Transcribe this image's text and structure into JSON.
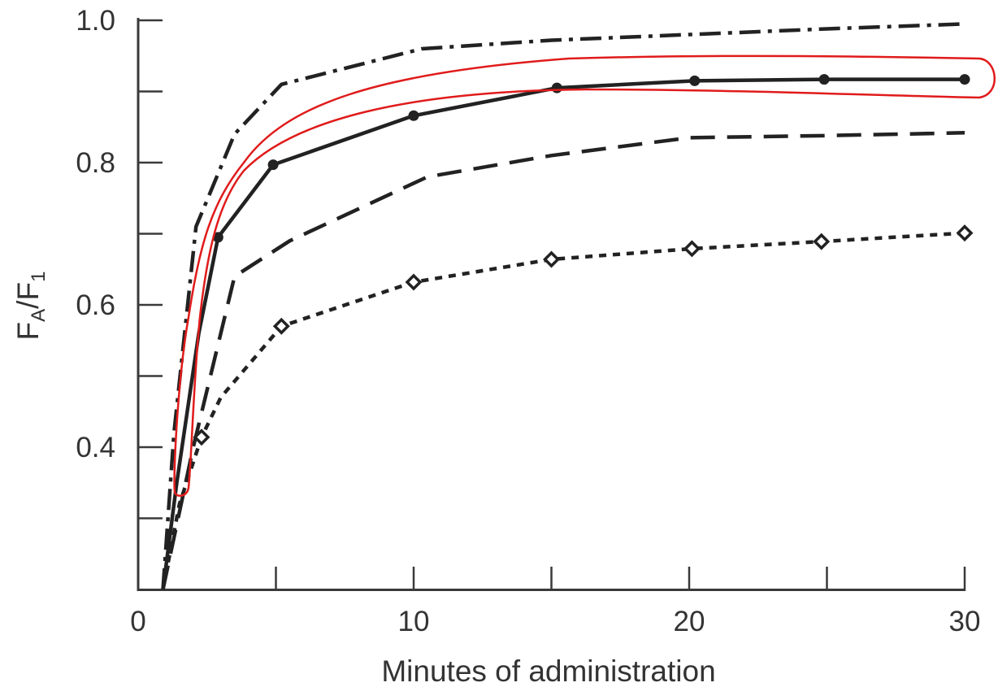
{
  "chart_data": {
    "type": "line",
    "xlabel": "Minutes of administration",
    "ylabel_main": "F",
    "ylabel_sub_a": "A",
    "ylabel_slash": "/F",
    "ylabel_sub_b": "1",
    "xlim": [
      0,
      30
    ],
    "ylim": [
      0.2,
      1.0
    ],
    "x_ticks": [
      0,
      5,
      10,
      15,
      20,
      25,
      30
    ],
    "x_tick_labels": [
      {
        "value": 0,
        "label": "0"
      },
      {
        "value": 10,
        "label": "10"
      },
      {
        "value": 20,
        "label": "20"
      },
      {
        "value": 30,
        "label": "30"
      }
    ],
    "y_ticks": [
      0.3,
      0.4,
      0.5,
      0.6,
      0.7,
      0.8,
      0.9,
      1.0
    ],
    "y_tick_labels": [
      {
        "value": 0.4,
        "label": "0.4"
      },
      {
        "value": 0.6,
        "label": "0.6"
      },
      {
        "value": 0.8,
        "label": "0.8"
      },
      {
        "value": 1.0,
        "label": "1.0"
      }
    ],
    "grid": false,
    "legend": "none",
    "series": [
      {
        "style": "dash-dot",
        "marker": "none",
        "x": [
          0.9,
          1.3,
          2.1,
          3.5,
          5.2,
          10.3,
          15,
          20,
          25,
          30
        ],
        "y": [
          0.2,
          0.42,
          0.71,
          0.84,
          0.91,
          0.96,
          0.972,
          0.98,
          0.988,
          0.995
        ]
      },
      {
        "style": "solid",
        "marker": "filled-circle",
        "highlighted": true,
        "x": [
          0.9,
          1.4,
          2.2,
          2.9,
          4.9,
          10.0,
          15.2,
          20.2,
          24.9,
          30.0
        ],
        "y": [
          0.2,
          0.35,
          0.56,
          0.695,
          0.797,
          0.866,
          0.905,
          0.915,
          0.917,
          0.917
        ],
        "marker_x": [
          2.9,
          4.9,
          10.0,
          15.2,
          20.2,
          24.9,
          30.0
        ],
        "marker_y": [
          0.695,
          0.797,
          0.866,
          0.905,
          0.915,
          0.917,
          0.917
        ]
      },
      {
        "style": "dashed",
        "marker": "none",
        "x": [
          0.9,
          2.0,
          3.5,
          5.5,
          10.5,
          15,
          20,
          25,
          30
        ],
        "y": [
          0.2,
          0.4,
          0.64,
          0.69,
          0.78,
          0.81,
          0.835,
          0.838,
          0.842
        ]
      },
      {
        "style": "dotted",
        "marker": "open-diamond",
        "x": [
          0.9,
          1.5,
          2.3,
          3.0,
          5.2,
          10.0,
          15.0,
          20.1,
          24.8,
          30.0
        ],
        "y": [
          0.2,
          0.32,
          0.414,
          0.47,
          0.57,
          0.632,
          0.664,
          0.679,
          0.689,
          0.701
        ],
        "marker_x": [
          2.3,
          5.2,
          10.0,
          15.0,
          20.1,
          24.8,
          30.0
        ],
        "marker_y": [
          0.414,
          0.57,
          0.632,
          0.664,
          0.679,
          0.689,
          0.701
        ]
      }
    ],
    "annotations": [
      {
        "type": "outline",
        "color": "#e01b1b",
        "encloses": "solid series"
      }
    ]
  }
}
